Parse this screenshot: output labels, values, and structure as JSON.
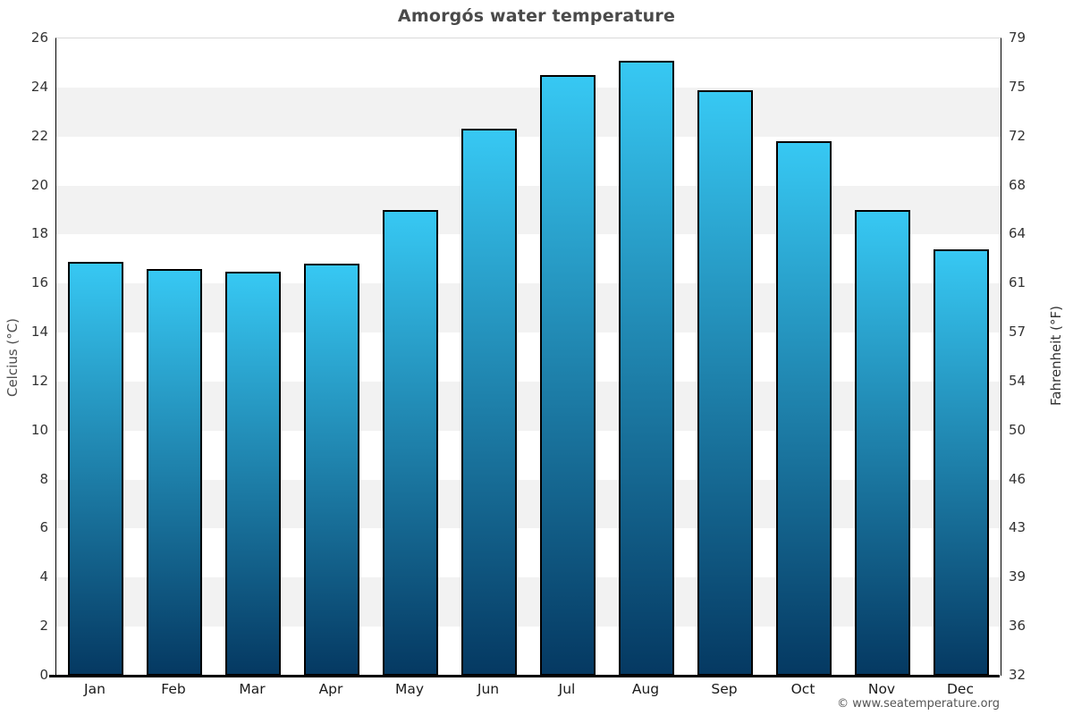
{
  "title": "Amorgós water temperature",
  "footer": {
    "copyright": "© www.seatemperature.org"
  },
  "chart_data": {
    "type": "bar",
    "title": "Amorgós water temperature",
    "categories": [
      "Jan",
      "Feb",
      "Mar",
      "Apr",
      "May",
      "Jun",
      "Jul",
      "Aug",
      "Sep",
      "Oct",
      "Nov",
      "Dec"
    ],
    "values": [
      16.9,
      16.6,
      16.5,
      16.8,
      19.0,
      22.3,
      24.5,
      25.1,
      23.9,
      21.8,
      19.0,
      17.4
    ],
    "unit": "°C",
    "ylabel_left": "Celcius (°C)",
    "ylabel_right": "Fahrenheit (°F)",
    "ylim": [
      0,
      26
    ],
    "ytick_step": 2,
    "left_tick_labels": [
      "0",
      "2",
      "4",
      "6",
      "8",
      "10",
      "12",
      "14",
      "16",
      "18",
      "20",
      "22",
      "24",
      "26"
    ],
    "right_tick_labels": [
      "32",
      "36",
      "39",
      "43",
      "46",
      "50",
      "54",
      "57",
      "61",
      "64",
      "68",
      "72",
      "75",
      "79"
    ],
    "grid": "alternating-horizontal-bands",
    "legend": "none",
    "colors": {
      "bar_gradient_top": "#37c8f3",
      "bar_gradient_bottom": "#053962",
      "bar_border": "#000000",
      "band_gray": "#f2f2f2",
      "band_white": "#ffffff",
      "title_text": "#4a4a4a",
      "tick_text": "#333333",
      "copyright_text": "#555555"
    }
  }
}
